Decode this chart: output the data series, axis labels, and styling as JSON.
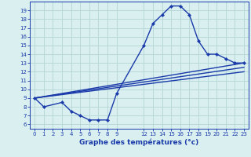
{
  "xlabel": "Graphe des températures (°c)",
  "xlim": [
    -0.5,
    23.5
  ],
  "ylim": [
    5.5,
    20
  ],
  "xticks": [
    0,
    1,
    2,
    3,
    4,
    5,
    6,
    7,
    8,
    9,
    12,
    13,
    14,
    15,
    16,
    17,
    18,
    19,
    20,
    21,
    22,
    23
  ],
  "yticks": [
    6,
    7,
    8,
    9,
    10,
    11,
    12,
    13,
    14,
    15,
    16,
    17,
    18,
    19
  ],
  "bg_color": "#daf0f0",
  "grid_color": "#b8d8d8",
  "line_color": "#1a3aaa",
  "curve1_x": [
    0,
    1,
    3,
    4,
    5,
    6,
    7,
    8,
    9,
    12,
    13,
    14,
    15,
    16,
    17,
    18,
    19,
    20,
    21,
    22,
    23
  ],
  "curve1_y": [
    9.0,
    8.0,
    8.5,
    7.5,
    7.0,
    6.5,
    6.5,
    6.5,
    9.5,
    15.0,
    17.5,
    18.5,
    19.5,
    19.5,
    18.5,
    15.5,
    14.0,
    14.0,
    13.5,
    13.0,
    13.0
  ],
  "curve2_x": [
    0,
    23
  ],
  "curve2_y": [
    9.0,
    13.0
  ],
  "curve3_x": [
    0,
    23
  ],
  "curve3_y": [
    9.0,
    12.5
  ],
  "curve4_x": [
    0,
    23
  ],
  "curve4_y": [
    9.0,
    12.0
  ],
  "marker_style": "D",
  "marker_size": 2.2,
  "line_width": 1.0,
  "tick_fontsize": 5.0,
  "xlabel_fontsize": 6.5
}
